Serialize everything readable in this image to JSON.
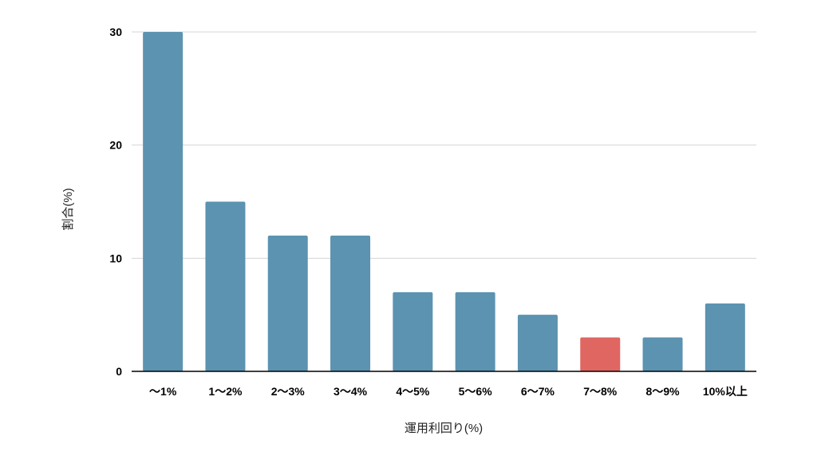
{
  "chart_data": {
    "type": "bar",
    "title": "",
    "xlabel": "運用利回り(%)",
    "ylabel": "割合(%)",
    "categories": [
      "〜1%",
      "1〜2%",
      "2〜3%",
      "3〜4%",
      "4〜5%",
      "5〜6%",
      "6〜7%",
      "7〜8%",
      "8〜9%",
      "10%以上"
    ],
    "values": [
      30,
      15,
      12,
      12,
      7,
      7,
      5,
      3,
      3,
      6
    ],
    "ylim": [
      0,
      30
    ],
    "yticks": [
      0,
      10,
      20,
      30
    ],
    "grid": true,
    "legend": "none",
    "colors": {
      "bar": "#5b93b1",
      "highlight": "#e06661",
      "gridline": "#d6d6d6",
      "axis": "#000000"
    },
    "highlight_index": 7
  }
}
